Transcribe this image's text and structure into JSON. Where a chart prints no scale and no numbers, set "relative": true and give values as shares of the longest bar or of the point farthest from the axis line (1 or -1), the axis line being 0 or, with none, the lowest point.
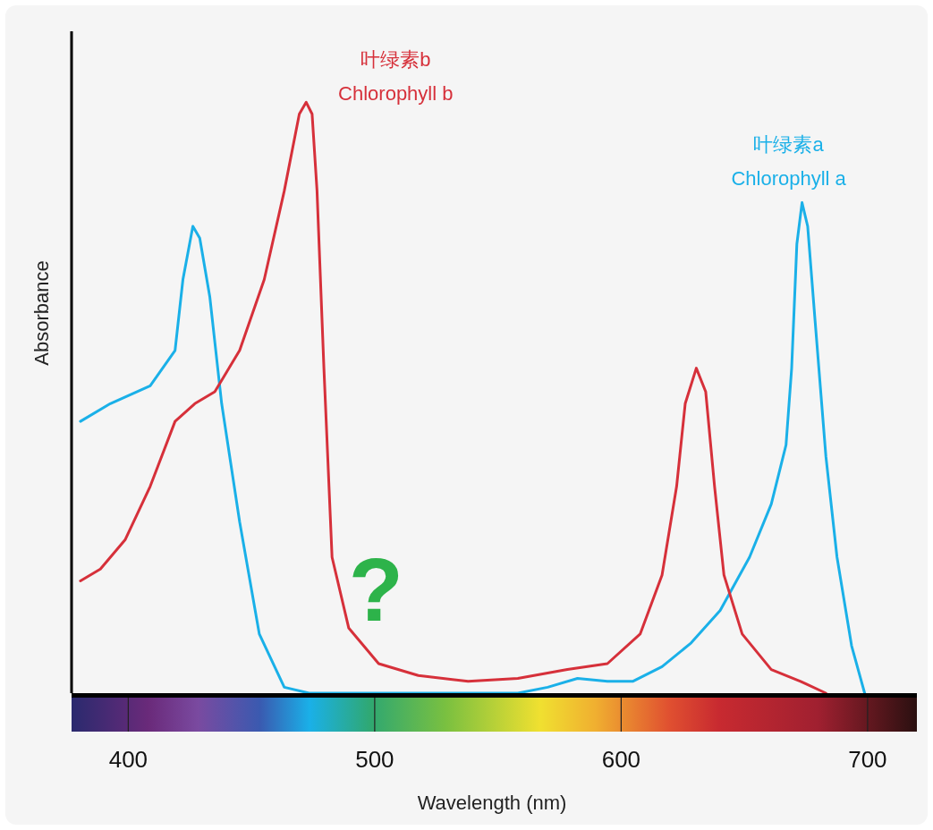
{
  "chart_data": {
    "type": "line",
    "relative": true,
    "xlabel": "Wavelength (nm)",
    "ylabel": "Absorbance",
    "xlim": [
      377,
      720
    ],
    "xticks": [
      400,
      500,
      600,
      700
    ],
    "tick_labels": "x",
    "legend": false,
    "grid": false,
    "marker": "none",
    "line_style": "solid",
    "series": [
      {
        "name": "叶绿素a\nChlorophyll a",
        "color": "#1ab0e8",
        "x": [
          380.6,
          392.7,
          408.9,
          419.0,
          422.2,
          426.2,
          429.0,
          433.1,
          437.9,
          445.2,
          453.2,
          463.3,
          473.4,
          558.1,
          570.2,
          582.3,
          594.4,
          604.7,
          616.6,
          628.4,
          640.2,
          652.1,
          660.9,
          666.9,
          669.2,
          671.3,
          673.4,
          675.7,
          678.7,
          683.1,
          687.6,
          693.5,
          698.8
        ],
        "values": [
          0.46,
          0.49,
          0.52,
          0.58,
          0.7,
          0.79,
          0.77,
          0.67,
          0.49,
          0.29,
          0.1,
          0.01,
          0,
          0,
          0.01,
          0.025,
          0.02,
          0.02,
          0.045,
          0.085,
          0.14,
          0.23,
          0.32,
          0.42,
          0.55,
          0.76,
          0.83,
          0.79,
          0.63,
          0.4,
          0.23,
          0.08,
          0
        ]
      },
      {
        "name": "叶绿素b\nChlorophyll b",
        "color": "#d6303a",
        "x": [
          380.6,
          388.7,
          398.8,
          408.9,
          419.0,
          427.0,
          435.1,
          445.2,
          455.2,
          463.3,
          469.4,
          472.2,
          474.6,
          476.6,
          479.4,
          482.7,
          489.5,
          501.6,
          517.7,
          537.9,
          558.1,
          578.2,
          594.4,
          607.7,
          616.6,
          622.5,
          626.0,
          630.5,
          634.3,
          637.9,
          641.7,
          649.1,
          660.9,
          672.8,
          683.1
        ],
        "values": [
          0.19,
          0.21,
          0.26,
          0.35,
          0.46,
          0.49,
          0.51,
          0.58,
          0.7,
          0.85,
          0.98,
          1,
          0.98,
          0.85,
          0.55,
          0.23,
          0.11,
          0.05,
          0.03,
          0.02,
          0.025,
          0.04,
          0.05,
          0.1,
          0.2,
          0.35,
          0.49,
          0.55,
          0.51,
          0.35,
          0.2,
          0.1,
          0.04,
          0.02,
          0
        ]
      }
    ],
    "annotations": [
      "?"
    ]
  }
}
